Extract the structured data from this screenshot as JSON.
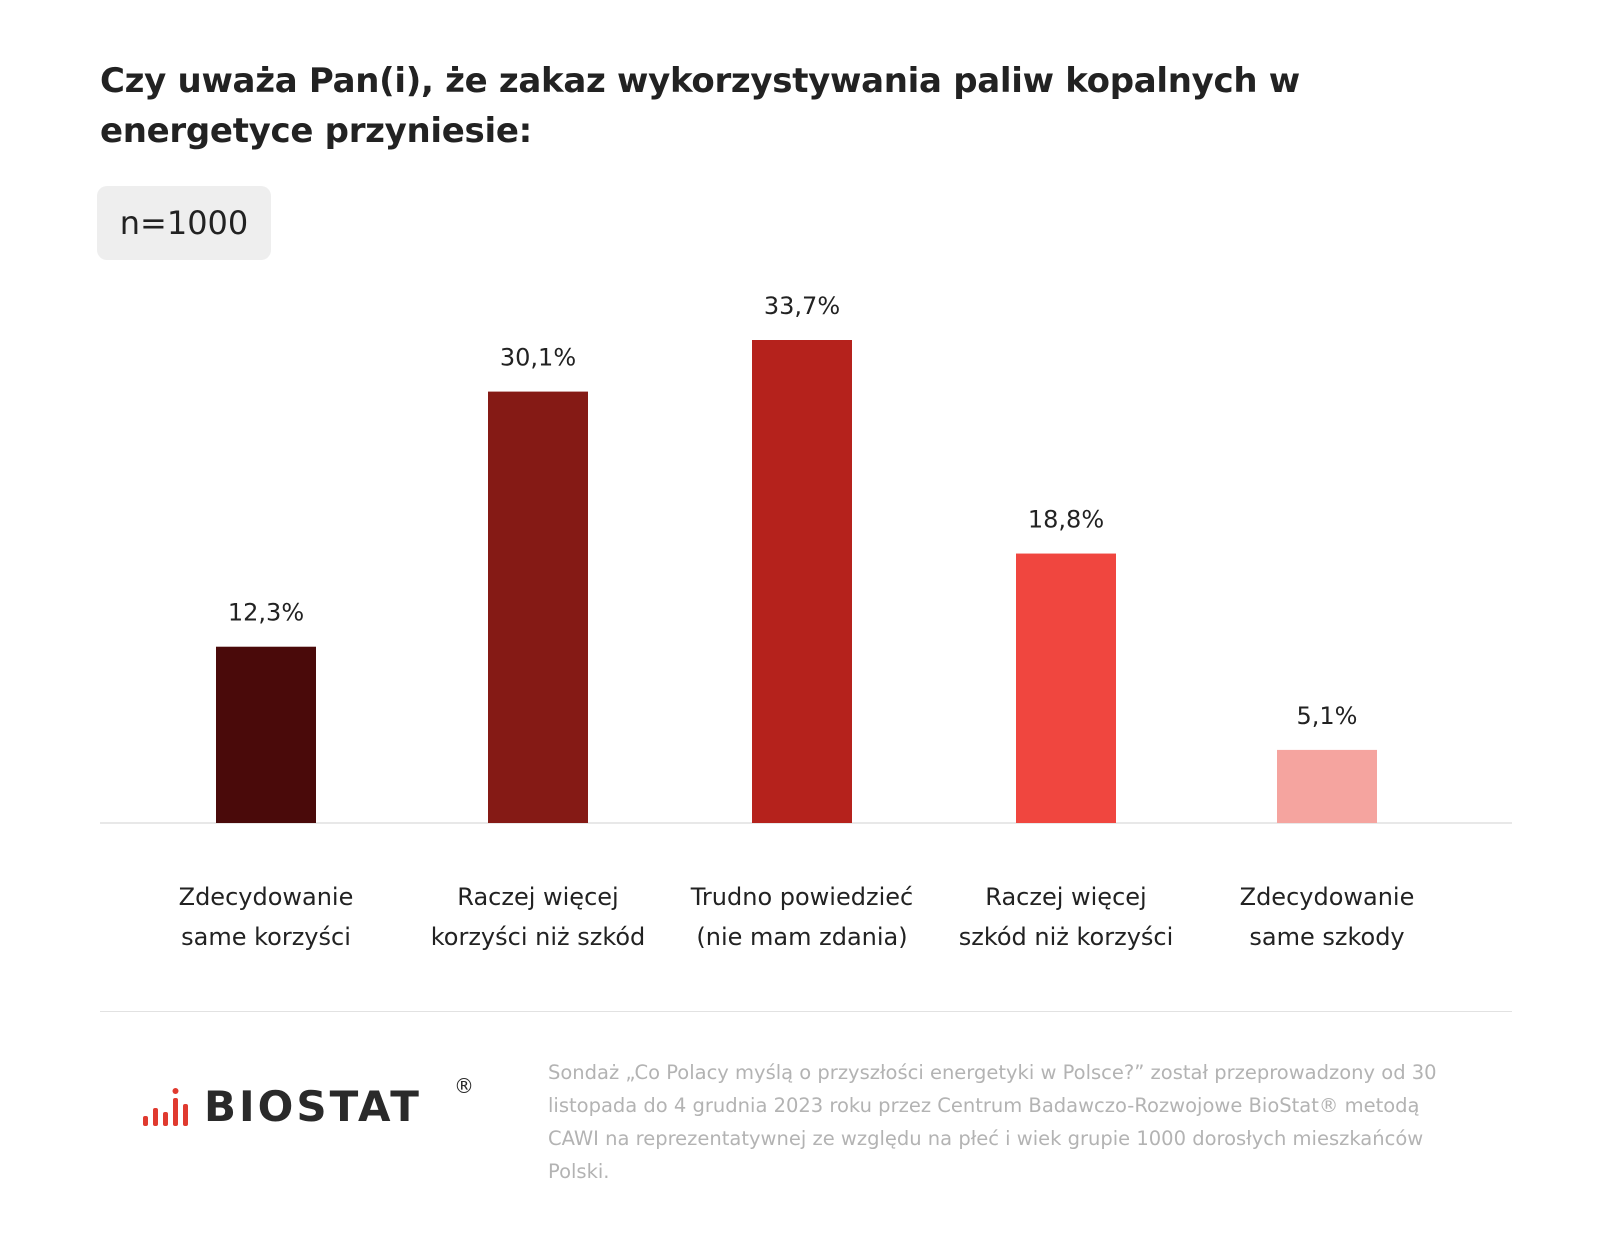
{
  "header": {
    "title": "Czy uważa Pan(i), że zakaz wykorzystywania paliw kopalnych w energetyce przyniesie:",
    "sample": "n=1000"
  },
  "chart_data": {
    "type": "bar",
    "title": "Czy uważa Pan(i), że zakaz wykorzystywania paliw kopalnych w energetyce przyniesie:",
    "categories": [
      [
        "Zdecydowanie",
        "same korzyści"
      ],
      [
        "Raczej więcej",
        "korzyści niż szkód"
      ],
      [
        "Trudno powiedzieć",
        "(nie mam zdania)"
      ],
      [
        "Raczej więcej",
        "szkód niż korzyści"
      ],
      [
        "Zdecydowanie",
        "same szkody"
      ]
    ],
    "values": [
      12.3,
      30.1,
      33.7,
      18.8,
      5.1
    ],
    "value_labels": [
      "12,3%",
      "30,1%",
      "33,7%",
      "18,8%",
      "5,1%"
    ],
    "colors": [
      "#4a0a0a",
      "#851a15",
      "#b5221c",
      "#f0463f",
      "#f5a49f"
    ],
    "ylim": [
      0,
      33.7
    ],
    "grid": false,
    "legend": "none"
  },
  "footer": {
    "logo_text": "BIOSTAT",
    "logo_mark": "®",
    "logo_icon": "signal-bars-icon",
    "logo_color": "#e03a2f",
    "note": "Sondaż „Co Polacy myślą o przyszłości energetyki w Polsce?” został przeprowadzony od 30 listopada do 4 grudnia 2023 roku przez Centrum Badawczo-Rozwojowe BioStat® metodą CAWI na reprezentatywnej ze względu na płeć i wiek grupie 1000 dorosłych mieszkańców Polski."
  }
}
